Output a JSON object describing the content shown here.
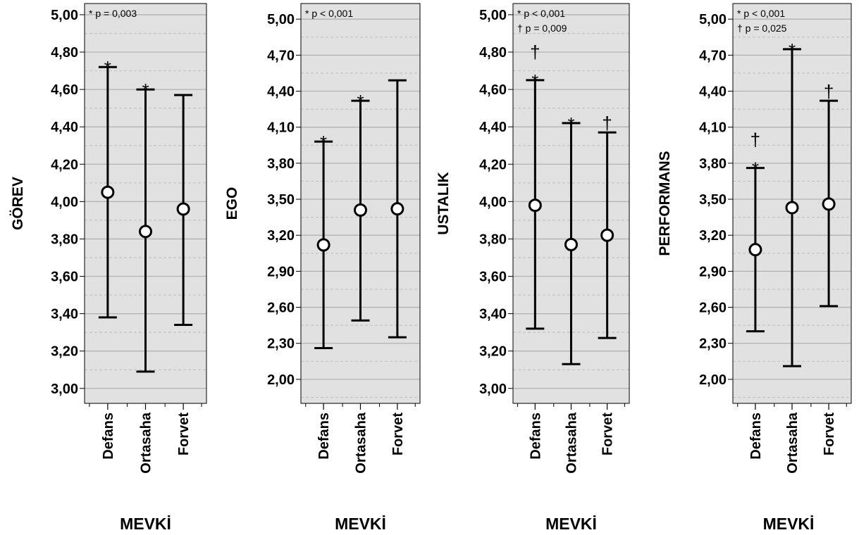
{
  "x_label": "MEVKİ",
  "chart_data": [
    {
      "type": "errorbar",
      "ylabel": "GÖREV",
      "xlabel": "MEVKİ",
      "ylim": [
        2.92,
        5.06
      ],
      "yticks": [
        "3,00",
        "3,20",
        "3,40",
        "3,60",
        "3,80",
        "4,00",
        "4,20",
        "4,40",
        "4,60",
        "4,80",
        "5,00"
      ],
      "categories": [
        "Defans",
        "Ortasaha",
        "Forvet"
      ],
      "mean": [
        4.05,
        3.84,
        3.96
      ],
      "lower": [
        3.38,
        3.09,
        3.34
      ],
      "upper": [
        4.72,
        4.6,
        4.57
      ],
      "annotations": [
        {
          "text": "* p = 0,003"
        }
      ],
      "bar_markers": [
        [
          "*"
        ],
        [
          "*"
        ],
        []
      ]
    },
    {
      "type": "errorbar",
      "ylabel": "EGO",
      "xlabel": "MEVKİ",
      "ylim": [
        1.8,
        5.13
      ],
      "yticks": [
        "2,00",
        "2,30",
        "2,60",
        "2,90",
        "3,20",
        "3,50",
        "3,80",
        "4,10",
        "4,40",
        "4,70",
        "5,00"
      ],
      "categories": [
        "Defans",
        "Ortasaha",
        "Forvet"
      ],
      "mean": [
        3.12,
        3.41,
        3.42
      ],
      "lower": [
        2.26,
        2.49,
        2.35
      ],
      "upper": [
        3.98,
        4.32,
        4.49
      ],
      "annotations": [
        {
          "text": "* p < 0,001"
        }
      ],
      "bar_markers": [
        [
          "*"
        ],
        [
          "*"
        ],
        []
      ]
    },
    {
      "type": "errorbar",
      "ylabel": "USTALIK",
      "xlabel": "MEVKİ",
      "ylim": [
        2.92,
        5.06
      ],
      "yticks": [
        "3,00",
        "3,20",
        "3,40",
        "3,60",
        "3,80",
        "4,00",
        "4,20",
        "4,40",
        "4,60",
        "4,80",
        "5,00"
      ],
      "categories": [
        "Defans",
        "Ortasaha",
        "Forvet"
      ],
      "mean": [
        3.98,
        3.77,
        3.82
      ],
      "lower": [
        3.32,
        3.13,
        3.27
      ],
      "upper": [
        4.65,
        4.42,
        4.37
      ],
      "annotations": [
        {
          "text": "* p < 0,001"
        },
        {
          "text": "† p = 0,009"
        }
      ],
      "bar_markers": [
        [
          "*",
          "†"
        ],
        [
          "*"
        ],
        [
          "†"
        ]
      ]
    },
    {
      "type": "errorbar",
      "ylabel": "PERFORMANS",
      "xlabel": "MEVKİ",
      "ylim": [
        1.8,
        5.13
      ],
      "yticks": [
        "2,00",
        "2,30",
        "2,60",
        "2,90",
        "3,20",
        "3,50",
        "3,80",
        "4,10",
        "4,40",
        "4,70",
        "5,00"
      ],
      "categories": [
        "Defans",
        "Ortasaha",
        "Forvet"
      ],
      "mean": [
        3.08,
        3.43,
        3.46
      ],
      "lower": [
        2.4,
        2.11,
        2.61
      ],
      "upper": [
        3.76,
        4.75,
        4.32
      ],
      "annotations": [
        {
          "text": "* p < 0,001"
        },
        {
          "text": "† p = 0,025"
        }
      ],
      "bar_markers": [
        [
          "*",
          "†"
        ],
        [
          "*"
        ],
        [
          "†"
        ]
      ]
    }
  ]
}
